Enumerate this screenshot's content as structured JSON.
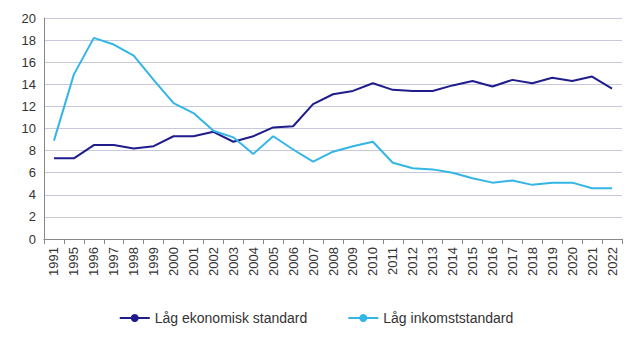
{
  "chart_data": {
    "type": "line",
    "categories": [
      "1991",
      "1995",
      "1996",
      "1997",
      "1998",
      "1999",
      "2000",
      "2001",
      "2002",
      "2003",
      "2004",
      "2005",
      "2006",
      "2007",
      "2008",
      "2009",
      "2010",
      "2011",
      "2012",
      "2013",
      "2014",
      "2015",
      "2016",
      "2017",
      "2018",
      "2019",
      "2020",
      "2021",
      "2022"
    ],
    "series": [
      {
        "name": "Låg ekonomisk standard",
        "color": "#1f1c8c",
        "values": [
          7.3,
          7.3,
          8.5,
          8.5,
          8.2,
          8.4,
          9.3,
          9.3,
          9.7,
          8.8,
          9.3,
          10.1,
          10.2,
          12.2,
          13.1,
          13.4,
          14.1,
          13.5,
          13.4,
          13.4,
          13.9,
          14.3,
          13.8,
          14.4,
          14.1,
          14.6,
          14.3,
          14.7,
          13.6
        ]
      },
      {
        "name": "Låg inkomststandard",
        "color": "#33b5e6",
        "values": [
          8.9,
          14.9,
          18.2,
          17.6,
          16.6,
          14.4,
          12.3,
          11.4,
          9.8,
          9.2,
          7.7,
          9.3,
          8.1,
          7.0,
          7.9,
          8.4,
          8.8,
          6.9,
          6.4,
          6.3,
          6.0,
          5.5,
          5.1,
          5.3,
          4.9,
          5.1,
          5.1,
          4.6,
          4.6
        ]
      }
    ],
    "ylim": [
      0,
      20
    ],
    "yticks": [
      0,
      2,
      4,
      6,
      8,
      10,
      12,
      14,
      16,
      18,
      20
    ],
    "grid": true,
    "legend": "bottom"
  }
}
